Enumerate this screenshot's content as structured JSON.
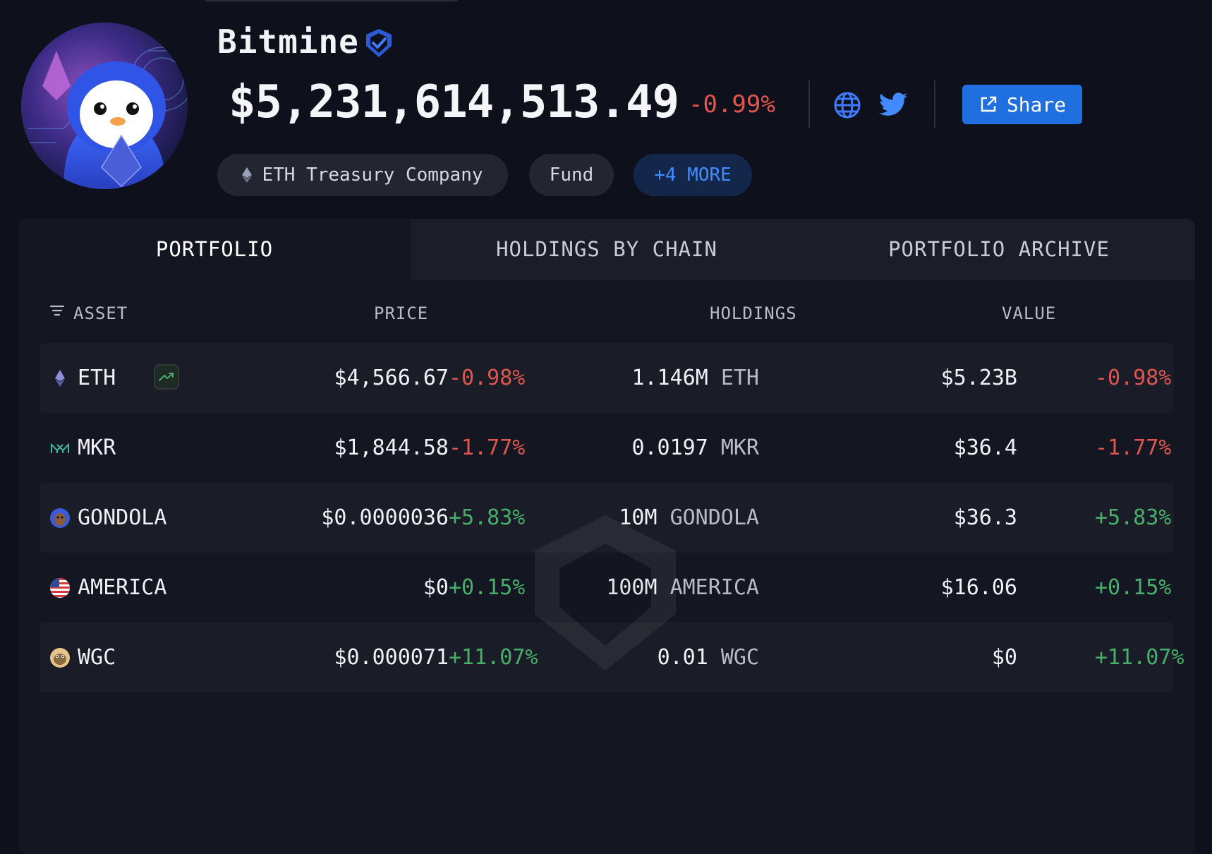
{
  "entity": {
    "name": "Bitmine",
    "balance": "$5,231,614,513.49",
    "balance_change": "-0.99%"
  },
  "share_label": "Share",
  "tags": [
    {
      "label": "ETH Treasury Company",
      "icon": "eth-icon"
    },
    {
      "label": "Fund"
    },
    {
      "label": "+4 MORE"
    }
  ],
  "tabs": [
    "PORTFOLIO",
    "HOLDINGS BY CHAIN",
    "PORTFOLIO ARCHIVE"
  ],
  "active_tab": "PORTFOLIO",
  "table": {
    "headers": {
      "asset": "ASSET",
      "price": "PRICE",
      "holdings": "HOLDINGS",
      "value": "VALUE"
    },
    "rows": [
      {
        "asset": "ETH",
        "icon": "eth-icon",
        "price": "$4,566.67",
        "price_change": "-0.98%",
        "holdings_amount": "1.146M",
        "holdings_unit": "ETH",
        "value": "$5.23B",
        "value_change": "-0.98%"
      },
      {
        "asset": "MKR",
        "icon": "mkr-icon",
        "price": "$1,844.58",
        "price_change": "-1.77%",
        "holdings_amount": "0.0197",
        "holdings_unit": "MKR",
        "value": "$36.4",
        "value_change": "-1.77%"
      },
      {
        "asset": "GONDOLA",
        "icon": "gondola-icon",
        "price": "$0.0000036",
        "price_change": "+5.83%",
        "holdings_amount": "10M",
        "holdings_unit": "GONDOLA",
        "value": "$36.3",
        "value_change": "+5.83%"
      },
      {
        "asset": "AMERICA",
        "icon": "us-flag-icon",
        "price": "$0",
        "price_change": "+0.15%",
        "holdings_amount": "100M",
        "holdings_unit": "AMERICA",
        "value": "$16.06",
        "value_change": "+0.15%"
      },
      {
        "asset": "WGC",
        "icon": "wgc-icon",
        "price": "$0.000071",
        "price_change": "+11.07%",
        "holdings_amount": "0.01",
        "holdings_unit": "WGC",
        "value": "$0",
        "value_change": "+11.07%"
      }
    ]
  },
  "colors": {
    "accent": "#1f6fe0",
    "negative": "#e0564f",
    "positive": "#46b06a",
    "background": "#0e111b"
  }
}
